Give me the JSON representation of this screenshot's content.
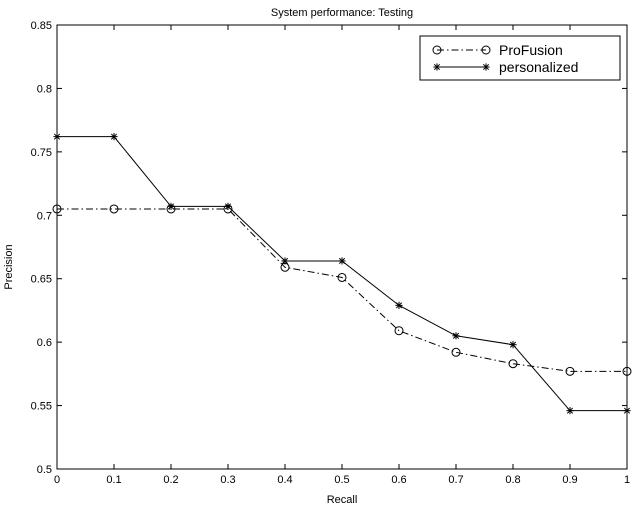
{
  "chart_data": {
    "type": "line",
    "title": "System performance: Testing",
    "xlabel": "Recall",
    "ylabel": "Precision",
    "xlim": [
      0,
      1
    ],
    "ylim": [
      0.5,
      0.85
    ],
    "grid": false,
    "legend_position": "top-right",
    "x": [
      0,
      0.1,
      0.2,
      0.3,
      0.4,
      0.5,
      0.6,
      0.7,
      0.8,
      0.9,
      1.0
    ],
    "x_ticks": [
      "0",
      "0.1",
      "0.2",
      "0.3",
      "0.4",
      "0.5",
      "0.6",
      "0.7",
      "0.8",
      "0.9",
      "1"
    ],
    "y_ticks": [
      "0.5",
      "0.55",
      "0.6",
      "0.65",
      "0.7",
      "0.75",
      "0.8",
      "0.85"
    ],
    "series": [
      {
        "name": "ProFusion",
        "style": "dash-dot",
        "marker": "circle",
        "color": "#000000",
        "values": [
          0.705,
          0.705,
          0.705,
          0.705,
          0.659,
          0.651,
          0.609,
          0.592,
          0.583,
          0.577,
          0.577
        ]
      },
      {
        "name": "personalized",
        "style": "solid",
        "marker": "star",
        "color": "#000000",
        "values": [
          0.762,
          0.762,
          0.707,
          0.707,
          0.664,
          0.664,
          0.629,
          0.605,
          0.598,
          0.546,
          0.546
        ]
      }
    ]
  }
}
